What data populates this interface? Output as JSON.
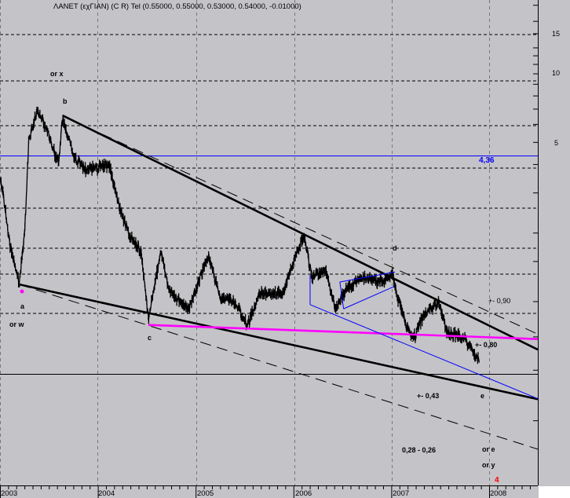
{
  "chart_data": {
    "type": "line",
    "title": "ΛΑΝΕΤ (εχΓΙΑΝ) (C R) Tel (0.55000, 0.55000, 0.53000, 0.54000, -0.01000)",
    "y_scale": "log",
    "y_ticks": [
      "15",
      "10",
      "5"
    ],
    "x_ticks": [
      "2003",
      "2004",
      "2005",
      "2006",
      "2007",
      "2008"
    ],
    "ylim": [
      0.2,
      20
    ],
    "xlim": [
      "2003-01-01",
      "2008-07-01"
    ],
    "grid": true,
    "colors": {
      "price": "#000000",
      "trend": "#000000",
      "support": "#ff00ff",
      "channel": "#0000ff",
      "level": "#0000ff",
      "marker": "#ff00ff",
      "count": "#ff0000"
    },
    "series": [
      {
        "points": [
          [
            "2003-01-02",
            3.4
          ],
          [
            "2003-01-16",
            2.79
          ],
          [
            "2003-02-06",
            1.8
          ],
          [
            "2003-03-14",
            1.19
          ],
          [
            "2003-04-04",
            2.11
          ],
          [
            "2003-04-18",
            5.05
          ],
          [
            "2003-05-20",
            6.94
          ],
          [
            "2003-06-24",
            5.7
          ],
          [
            "2003-08-08",
            3.98
          ],
          [
            "2003-08-22",
            6.4
          ],
          [
            "2003-10-05",
            4.3
          ],
          [
            "2003-11-18",
            3.8
          ],
          [
            "2004-02-14",
            3.98
          ],
          [
            "2004-03-14",
            2.79
          ],
          [
            "2004-04-27",
            1.95
          ],
          [
            "2004-06-10",
            1.66
          ],
          [
            "2004-07-08",
            0.85
          ],
          [
            "2004-08-25",
            1.66
          ],
          [
            "2004-09-23",
            1.12
          ],
          [
            "2004-12-05",
            0.92
          ],
          [
            "2005-02-17",
            1.6
          ],
          [
            "2005-04-02",
            1.04
          ],
          [
            "2005-05-30",
            0.99
          ],
          [
            "2005-07-13",
            0.78
          ],
          [
            "2005-08-26",
            1.08
          ],
          [
            "2005-11-22",
            1.08
          ],
          [
            "2006-01-05",
            1.54
          ],
          [
            "2006-02-10",
            1.95
          ],
          [
            "2006-03-11",
            1.27
          ],
          [
            "2006-05-01",
            1.37
          ],
          [
            "2006-06-07",
            0.92
          ],
          [
            "2006-07-13",
            1.12
          ],
          [
            "2006-09-09",
            1.27
          ],
          [
            "2006-12-06",
            1.22
          ],
          [
            "2007-01-05",
            1.35
          ],
          [
            "2007-01-19",
            1.08
          ],
          [
            "2007-03-05",
            0.75
          ],
          [
            "2007-03-30",
            0.71
          ],
          [
            "2007-05-02",
            0.88
          ],
          [
            "2007-06-29",
            0.99
          ],
          [
            "2007-07-28",
            0.73
          ],
          [
            "2007-09-28",
            0.7
          ],
          [
            "2007-10-27",
            0.62
          ],
          [
            "2007-11-25",
            0.54
          ]
        ]
      }
    ],
    "trend_lines": [
      {
        "style": "thick",
        "color": "#000000",
        "from": [
          "2003-08-22",
          6.57
        ],
        "to": [
          "2008-07-01",
          0.616
        ]
      },
      {
        "style": "thick",
        "color": "#000000",
        "from": [
          "2003-03-14",
          1.19
        ],
        "to": [
          "2008-07-01",
          0.373
        ]
      },
      {
        "style": "dashed",
        "color": "#000000",
        "from": [
          "2003-09-20",
          6.3
        ],
        "to": [
          "2008-07-01",
          0.72
        ]
      },
      {
        "style": "dashed",
        "color": "#000000",
        "from": [
          "2003-03-14",
          1.19
        ],
        "to": [
          "2008-07-01",
          0.225
        ]
      },
      {
        "style": "thick",
        "color": "#ff00ff",
        "from": [
          "2004-07-08",
          0.79
        ],
        "to": [
          "2008-07-01",
          0.685
        ]
      },
      {
        "style": "thin",
        "color": "#0000ff",
        "from": [
          "2006-03-04",
          1.31
        ],
        "to": [
          "2006-03-04",
          0.97
        ]
      },
      {
        "style": "thin",
        "color": "#0000ff",
        "from": [
          "2006-03-04",
          0.97
        ],
        "to": [
          "2008-07-01",
          0.375
        ]
      },
      {
        "style": "thin",
        "color": "#0000ff",
        "from": [
          "2006-06-23",
          1.22
        ],
        "to": [
          "2007-01-15",
          1.35
        ]
      },
      {
        "style": "thin",
        "color": "#0000ff",
        "from": [
          "2006-07-07",
          0.93
        ],
        "to": [
          "2007-01-15",
          1.17
        ]
      },
      {
        "style": "thin",
        "color": "#0000ff",
        "from": [
          "2006-06-23",
          1.22
        ],
        "to": [
          "2006-07-07",
          0.93
        ]
      }
    ],
    "horizontal_levels": [
      {
        "price": 4.36,
        "color": "#0000ff"
      },
      {
        "price": 0.48,
        "color": "#000000"
      }
    ],
    "annotations": {
      "or_x": "or x",
      "b": "b",
      "a": "a",
      "or_w": "or w",
      "c": "c",
      "d": "d",
      "pm090": "+- 0,90",
      "pm080": "+- 0,80",
      "y": "y",
      "pm043": "+- 0,43",
      "e": "e",
      "range": "0,28 - 0,26",
      "or_e": "or e",
      "or_y": "or y",
      "count": "4",
      "level": "4,36"
    }
  }
}
